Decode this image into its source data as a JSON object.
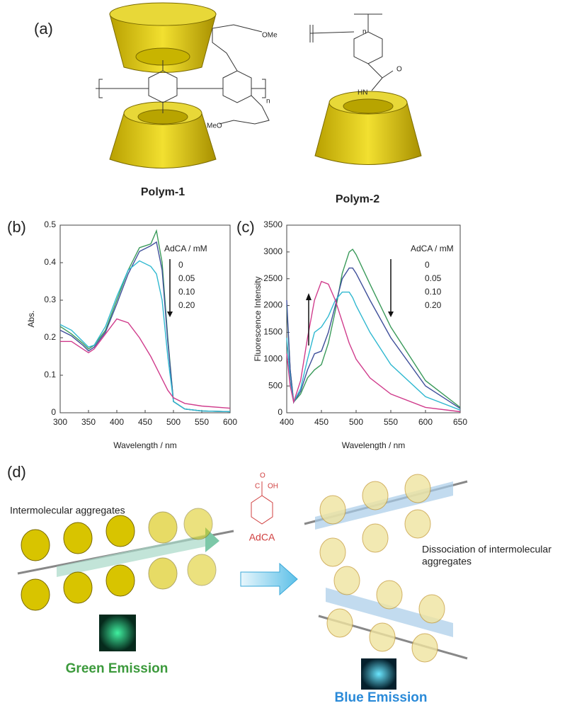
{
  "figure": {
    "panels": [
      "(a)",
      "(b)",
      "(c)",
      "(d)"
    ],
    "polym1": "Polym-1",
    "polym2": "Polym-2",
    "chem_labels": [
      "OMe",
      "n",
      "n",
      "HN",
      "O",
      "MeO"
    ],
    "d": {
      "left_caption": "Intermolecular aggregates",
      "reagent": "AdCA",
      "reagent_atoms": [
        "O",
        "C",
        "OH"
      ],
      "right_caption": [
        "Dissociation of intermolecular",
        "aggregates"
      ],
      "green": "Green Emission",
      "blue": "Blue Emission"
    }
  },
  "chart_data": [
    {
      "type": "line",
      "xlabel": "Wavelength / nm",
      "ylabel": "Abs.",
      "legend_title": "AdCA / mM",
      "x": [
        300,
        320,
        340,
        350,
        360,
        380,
        400,
        420,
        440,
        460,
        470,
        480,
        490,
        500,
        520,
        550,
        600
      ],
      "series": [
        {
          "name": "0",
          "color": "#3a9a5a",
          "values": [
            0.23,
            0.21,
            0.185,
            0.17,
            0.18,
            0.22,
            0.3,
            0.38,
            0.44,
            0.45,
            0.485,
            0.4,
            0.2,
            0.03,
            0.01,
            0.005,
            0.003
          ]
        },
        {
          "name": "0.05",
          "color": "#3f4f9a",
          "values": [
            0.22,
            0.205,
            0.18,
            0.165,
            0.175,
            0.215,
            0.29,
            0.37,
            0.43,
            0.445,
            0.455,
            0.38,
            0.19,
            0.03,
            0.01,
            0.005,
            0.003
          ]
        },
        {
          "name": "0.10",
          "color": "#2fb8d0",
          "values": [
            0.235,
            0.22,
            0.19,
            0.175,
            0.18,
            0.23,
            0.31,
            0.38,
            0.405,
            0.39,
            0.37,
            0.3,
            0.15,
            0.03,
            0.01,
            0.005,
            0.003
          ]
        },
        {
          "name": "0.20",
          "color": "#d03c8c",
          "values": [
            0.19,
            0.19,
            0.17,
            0.16,
            0.17,
            0.21,
            0.25,
            0.24,
            0.2,
            0.15,
            0.12,
            0.09,
            0.06,
            0.04,
            0.025,
            0.018,
            0.012
          ]
        }
      ],
      "xlim": [
        300,
        600
      ],
      "xticks": [
        300,
        350,
        400,
        450,
        500,
        550,
        600
      ],
      "ylim": [
        0,
        0.5
      ],
      "yticks": [
        0,
        0.1,
        0.2,
        0.3,
        0.4,
        0.5
      ],
      "arrow": "down"
    },
    {
      "type": "line",
      "xlabel": "Wavelength / nm",
      "ylabel": "Fluorescence Intensity",
      "legend_title": "AdCA / mM",
      "x": [
        400,
        405,
        410,
        420,
        430,
        440,
        450,
        460,
        470,
        480,
        490,
        495,
        500,
        520,
        550,
        600,
        650
      ],
      "series": [
        {
          "name": "0",
          "color": "#3a9a5a",
          "values": [
            2000,
            800,
            200,
            350,
            650,
            800,
            900,
            1300,
            1900,
            2600,
            3000,
            3050,
            2950,
            2400,
            1600,
            600,
            100
          ]
        },
        {
          "name": "0.05",
          "color": "#3f4f9a",
          "values": [
            2100,
            800,
            200,
            400,
            800,
            1100,
            1150,
            1500,
            2000,
            2500,
            2700,
            2700,
            2600,
            2100,
            1400,
            500,
            80
          ]
        },
        {
          "name": "0.10",
          "color": "#2fb8d0",
          "values": [
            1400,
            600,
            200,
            450,
            1000,
            1500,
            1600,
            1800,
            2100,
            2250,
            2250,
            2150,
            2000,
            1500,
            900,
            300,
            50
          ]
        },
        {
          "name": "0.20",
          "color": "#d03c8c",
          "values": [
            1100,
            500,
            200,
            600,
            1400,
            2100,
            2450,
            2400,
            2100,
            1700,
            1300,
            1150,
            1000,
            650,
            350,
            100,
            20
          ]
        }
      ],
      "xlim": [
        400,
        650
      ],
      "xticks": [
        400,
        450,
        500,
        550,
        600,
        650
      ],
      "ylim": [
        0,
        3500
      ],
      "yticks": [
        0,
        500,
        1000,
        1500,
        2000,
        2500,
        3000,
        3500
      ],
      "arrow": "down"
    }
  ]
}
